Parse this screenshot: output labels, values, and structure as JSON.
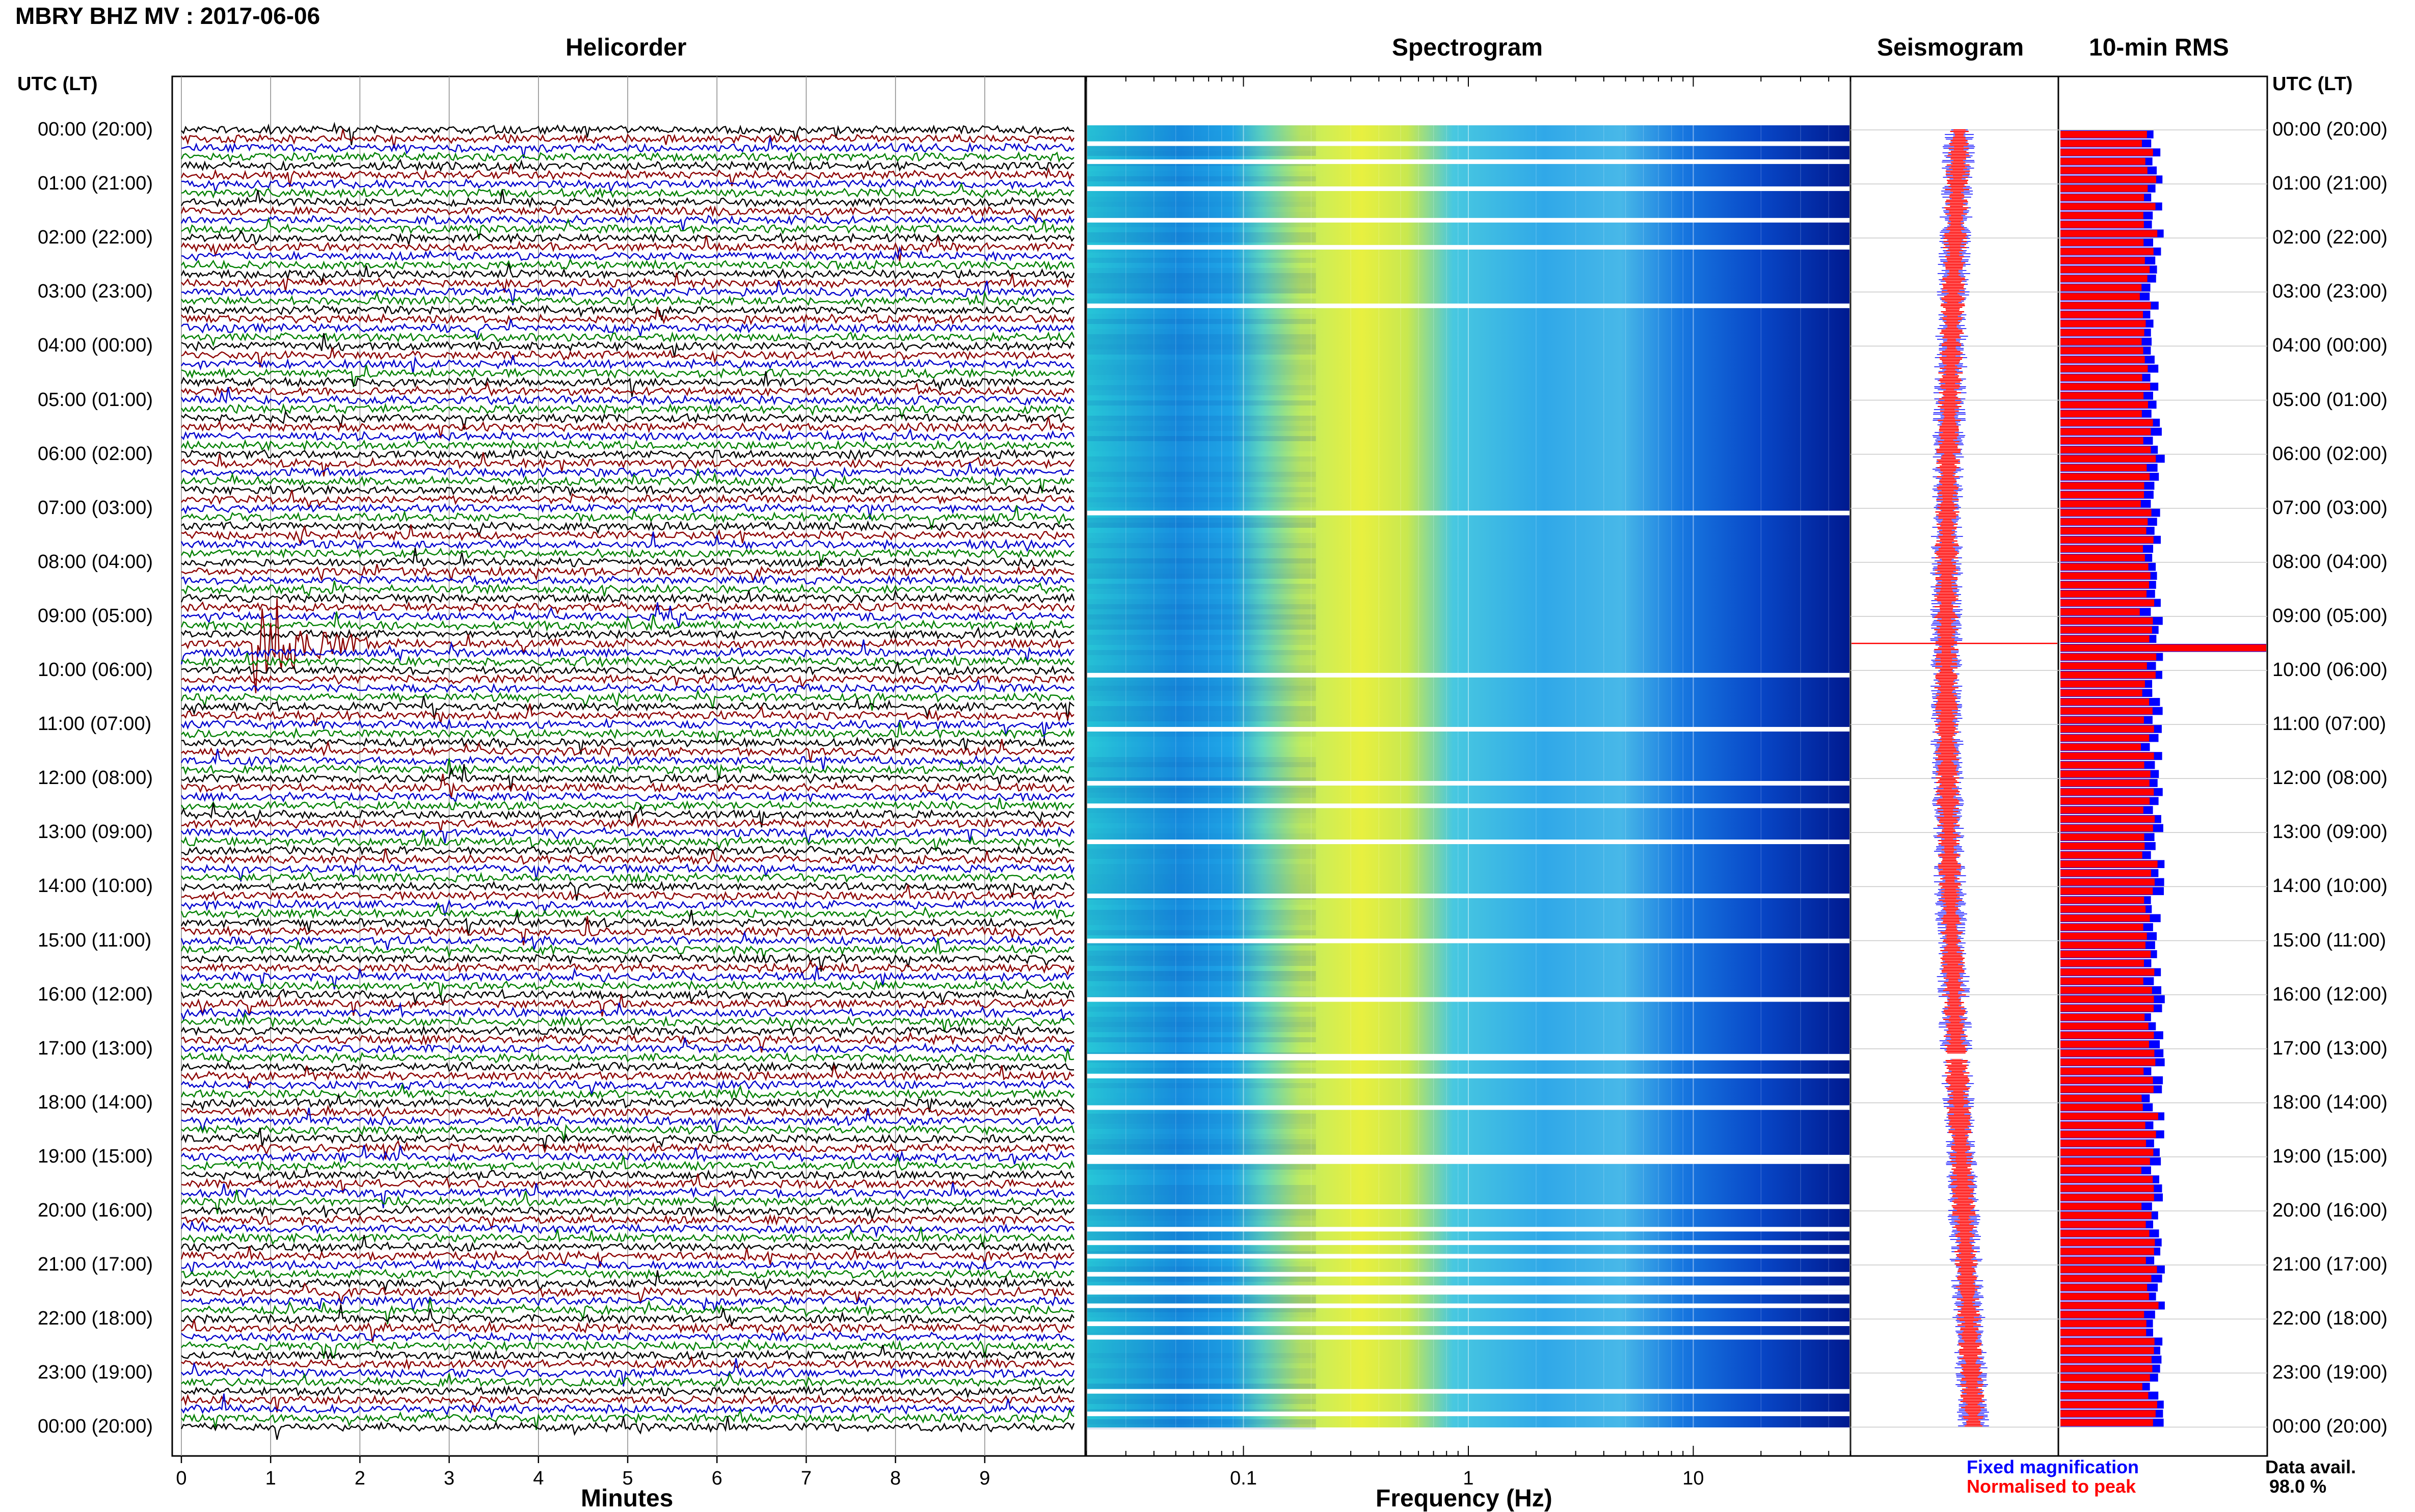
{
  "header": {
    "title": "MBRY BHZ MV : 2017-06-06",
    "utc_label_left": "UTC (LT)",
    "utc_label_right": "UTC (LT)"
  },
  "panels": {
    "helicorder": "Helicorder",
    "spectrogram": "Spectrogram",
    "seismogram": "Seismogram",
    "rms": "10-min RMS"
  },
  "hours": [
    "00:00 (20:00)",
    "01:00 (21:00)",
    "02:00 (22:00)",
    "03:00 (23:00)",
    "04:00 (00:00)",
    "05:00 (01:00)",
    "06:00 (02:00)",
    "07:00 (03:00)",
    "08:00 (04:00)",
    "09:00 (05:00)",
    "10:00 (06:00)",
    "11:00 (07:00)",
    "12:00 (08:00)",
    "13:00 (09:00)",
    "14:00 (10:00)",
    "15:00 (11:00)",
    "16:00 (12:00)",
    "17:00 (13:00)",
    "18:00 (14:00)",
    "19:00 (15:00)",
    "20:00 (16:00)",
    "21:00 (17:00)",
    "22:00 (18:00)",
    "23:00 (19:00)",
    "00:00 (20:00)"
  ],
  "chart_data": [
    {
      "type": "line",
      "name": "helicorder",
      "title": "Helicorder",
      "xlabel": "Minutes",
      "ylabel": "UTC (LT)",
      "xlim": [
        0,
        10
      ],
      "x_ticks": [
        0,
        1,
        2,
        3,
        4,
        5,
        6,
        7,
        8,
        9
      ],
      "traces_per_hour": 6,
      "trace_colors": [
        "#000000",
        "#8b0000",
        "#0000cc",
        "#008000"
      ],
      "event": {
        "time": "09:30",
        "minute": 1.0
      }
    },
    {
      "type": "heatmap",
      "name": "spectrogram",
      "title": "Spectrogram",
      "xlabel": "Frequency (Hz)",
      "x_scale": "log",
      "xlim": [
        0.02,
        50
      ],
      "x_tick_labels": [
        "0.1",
        "1",
        "10"
      ],
      "x_tick_values": [
        0.1,
        1,
        10
      ],
      "gap_times": [
        "00:15",
        "00:35",
        "01:05",
        "01:40",
        "02:10",
        "03:15",
        "07:05",
        "10:05",
        "11:05",
        "12:05",
        "12:30",
        "13:10",
        "14:10",
        "15:00",
        "16:05",
        "17:08",
        "17:10",
        "17:30",
        "18:05",
        "19:00",
        "19:05",
        "19:55",
        "20:20",
        "20:35",
        "20:50",
        "21:10",
        "21:25",
        "21:30",
        "21:45",
        "22:05",
        "22:20",
        "23:20",
        "23:45"
      ]
    },
    {
      "type": "line",
      "name": "seismogram",
      "title": "Seismogram",
      "series": [
        {
          "name": "Fixed magnification",
          "color": "#0000ff"
        },
        {
          "name": "Normalised to peak",
          "color": "#ff0000"
        }
      ],
      "spike_time": "09:30"
    },
    {
      "type": "bar",
      "name": "rms",
      "title": "10-min RMS",
      "bins_per_hour": 6,
      "colors": {
        "fixed": "#0000ff",
        "normalised": "#ff0000"
      },
      "spike_time": "09:30"
    }
  ],
  "legend": {
    "fixed": "Fixed magnification",
    "fixed_color": "#0000ff",
    "normalised": "Normalised to peak",
    "normalised_color": "#ff0000"
  },
  "data_availability": {
    "label": "Data avail.",
    "value": "98.0 %"
  }
}
